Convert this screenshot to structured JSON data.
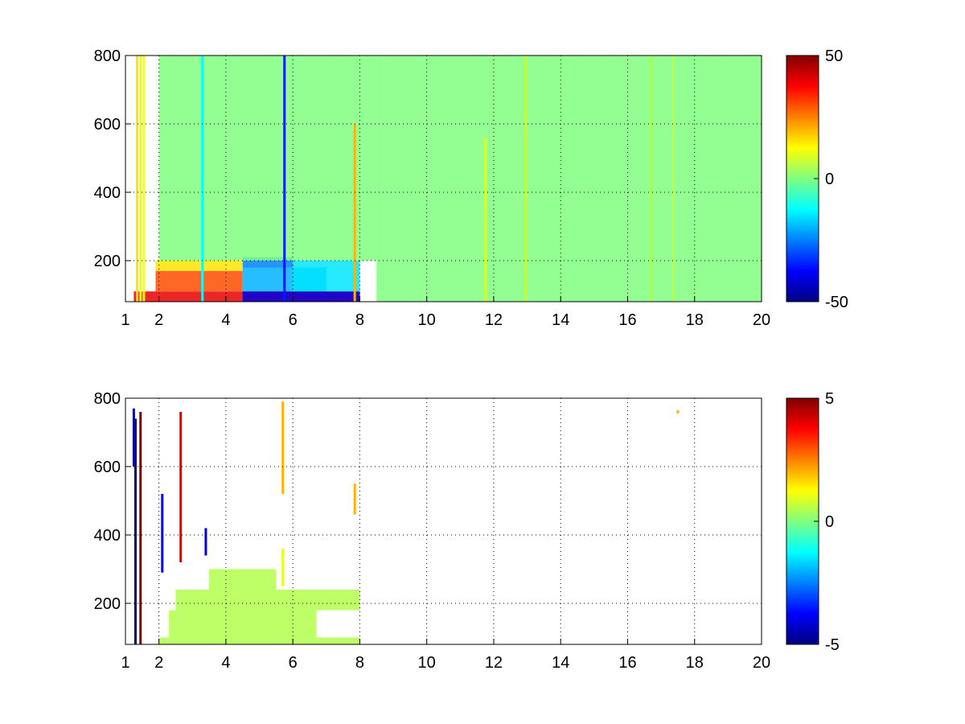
{
  "chart_data": [
    {
      "type": "heatmap",
      "title": "",
      "xlabel": "",
      "ylabel": "",
      "xlim": [
        1,
        20
      ],
      "ylim": [
        80,
        800
      ],
      "xticks": [
        1,
        2,
        4,
        6,
        8,
        10,
        12,
        14,
        16,
        18,
        20
      ],
      "xtick_labels": [
        "1",
        "2",
        "4",
        "6",
        "8",
        "10",
        "12",
        "14",
        "16",
        "18",
        "20"
      ],
      "yticks": [
        200,
        400,
        600,
        800
      ],
      "ytick_labels": [
        "200",
        "400",
        "600",
        "800"
      ],
      "grid": true,
      "colormap": "jet",
      "colorbar": {
        "range": [
          -50,
          50
        ],
        "ticks": [
          -50,
          0,
          50
        ],
        "tick_labels": [
          "-50",
          "0",
          "50"
        ]
      },
      "regions": [
        {
          "x": [
            1.25,
            8.0
          ],
          "y": [
            80,
            110
          ],
          "value": 40
        },
        {
          "x": [
            1.9,
            4.5
          ],
          "y": [
            110,
            170
          ],
          "value": 30
        },
        {
          "x": [
            1.9,
            4.5
          ],
          "y": [
            170,
            200
          ],
          "value": 15
        },
        {
          "x": [
            4.5,
            6.0
          ],
          "y": [
            80,
            110
          ],
          "value": -40
        },
        {
          "x": [
            4.5,
            7.0
          ],
          "y": [
            110,
            180
          ],
          "value": -20
        },
        {
          "x": [
            6.0,
            8.0
          ],
          "y": [
            80,
            110
          ],
          "value": -40
        },
        {
          "x": [
            6.0,
            8.0
          ],
          "y": [
            110,
            200
          ],
          "value": -15
        },
        {
          "x": [
            4.5,
            6.0
          ],
          "y": [
            180,
            210
          ],
          "value": -25
        },
        {
          "x": [
            2.0,
            8.5
          ],
          "y": [
            200,
            800
          ],
          "value": 0
        },
        {
          "x": [
            8.5,
            20.0
          ],
          "y": [
            80,
            800
          ],
          "value": 0
        }
      ],
      "stripes": [
        {
          "x": 1.35,
          "y": [
            80,
            800
          ],
          "value": 15
        },
        {
          "x": 1.45,
          "y": [
            80,
            800
          ],
          "value": 10
        },
        {
          "x": 1.55,
          "y": [
            80,
            800
          ],
          "value": 12
        },
        {
          "x": 5.75,
          "y": [
            80,
            800
          ],
          "value": -35
        },
        {
          "x": 3.3,
          "y": [
            80,
            800
          ],
          "value": -12
        },
        {
          "x": 7.85,
          "y": [
            80,
            600
          ],
          "value": 20
        },
        {
          "x": 11.75,
          "y": [
            80,
            560
          ],
          "value": 8
        },
        {
          "x": 12.95,
          "y": [
            80,
            800
          ],
          "value": 6
        },
        {
          "x": 17.35,
          "y": [
            80,
            800
          ],
          "value": 6
        },
        {
          "x": 16.7,
          "y": [
            80,
            800
          ],
          "value": 4
        }
      ]
    },
    {
      "type": "heatmap",
      "title": "",
      "xlabel": "",
      "ylabel": "",
      "xlim": [
        1,
        20
      ],
      "ylim": [
        80,
        800
      ],
      "xticks": [
        1,
        2,
        4,
        6,
        8,
        10,
        12,
        14,
        16,
        18,
        20
      ],
      "xtick_labels": [
        "1",
        "2",
        "4",
        "6",
        "8",
        "10",
        "12",
        "14",
        "16",
        "18",
        "20"
      ],
      "yticks": [
        200,
        400,
        600,
        800
      ],
      "ytick_labels": [
        "200",
        "400",
        "600",
        "800"
      ],
      "grid": true,
      "colormap": "jet",
      "colorbar": {
        "range": [
          -5,
          5
        ],
        "ticks": [
          -5,
          0,
          5
        ],
        "tick_labels": [
          "-5",
          "0",
          "5"
        ]
      },
      "regions": [
        {
          "x": [
            2.0,
            8.0
          ],
          "y": [
            80,
            100
          ],
          "value": 0.5
        },
        {
          "x": [
            2.3,
            6.7
          ],
          "y": [
            100,
            180
          ],
          "value": 0.5
        },
        {
          "x": [
            2.5,
            8.0
          ],
          "y": [
            180,
            240
          ],
          "value": 0.5
        },
        {
          "x": [
            3.5,
            5.5
          ],
          "y": [
            240,
            300
          ],
          "value": 0.5
        }
      ],
      "stripes": [
        {
          "x": 1.25,
          "y": [
            600,
            770
          ],
          "value": -4
        },
        {
          "x": 1.3,
          "y": [
            80,
            740
          ],
          "value": -5
        },
        {
          "x": 1.45,
          "y": [
            80,
            760
          ],
          "value": 5
        },
        {
          "x": 2.1,
          "y": [
            290,
            520
          ],
          "value": -4
        },
        {
          "x": 2.65,
          "y": [
            320,
            760
          ],
          "value": 4
        },
        {
          "x": 3.4,
          "y": [
            340,
            420
          ],
          "value": -4
        },
        {
          "x": 5.7,
          "y": [
            520,
            790
          ],
          "value": 2
        },
        {
          "x": 5.7,
          "y": [
            250,
            360
          ],
          "value": 1
        },
        {
          "x": 7.85,
          "y": [
            460,
            550
          ],
          "value": 2
        },
        {
          "x": 17.5,
          "y": [
            755,
            765
          ],
          "value": 2
        }
      ]
    }
  ]
}
